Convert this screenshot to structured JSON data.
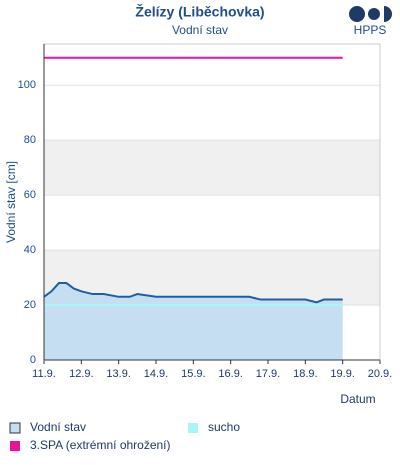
{
  "chart_data": {
    "type": "area",
    "title": "Želízy (Liběchovka)",
    "subtitle": "Vodní stav",
    "logo": "HPPS",
    "y_label": "Vodní stav [cm]",
    "x_label": "Datum",
    "xlim": [
      11,
      20
    ],
    "ylim": [
      0,
      115
    ],
    "xticks": [
      {
        "value": 11,
        "label": "11.9."
      },
      {
        "value": 12,
        "label": "12.9."
      },
      {
        "value": 13,
        "label": "13.9."
      },
      {
        "value": 14,
        "label": "14.9."
      },
      {
        "value": 15,
        "label": "15.9."
      },
      {
        "value": 16,
        "label": "16.9."
      },
      {
        "value": 17,
        "label": "17.9."
      },
      {
        "value": 18,
        "label": "18.9."
      },
      {
        "value": 19,
        "label": "19.9."
      },
      {
        "value": 20,
        "label": "20.9."
      }
    ],
    "yticks": [
      0,
      20,
      40,
      60,
      80,
      100
    ],
    "series": [
      {
        "name": "Vodní stav",
        "color": "#1f5fa0",
        "fill": "#c6def2",
        "x": [
          11,
          11.2,
          11.4,
          11.6,
          11.8,
          12,
          12.3,
          12.6,
          13,
          13.3,
          13.5,
          14,
          14.5,
          15,
          15.5,
          16,
          16.5,
          16.8,
          17.3,
          18,
          18.3,
          18.5,
          19
        ],
        "values": [
          23,
          25,
          28,
          28,
          26,
          25,
          24,
          24,
          23,
          23,
          24,
          23,
          23,
          23,
          23,
          23,
          23,
          22,
          22,
          22,
          21,
          22,
          22
        ]
      },
      {
        "name": "sucho",
        "color": "#aaf5f5",
        "x": [
          11,
          19
        ],
        "values": [
          20,
          20
        ]
      },
      {
        "name": "3.SPA (extrémní ohrožení)",
        "color": "#e8139a",
        "x": [
          11,
          19
        ],
        "values": [
          110,
          110
        ]
      }
    ]
  }
}
